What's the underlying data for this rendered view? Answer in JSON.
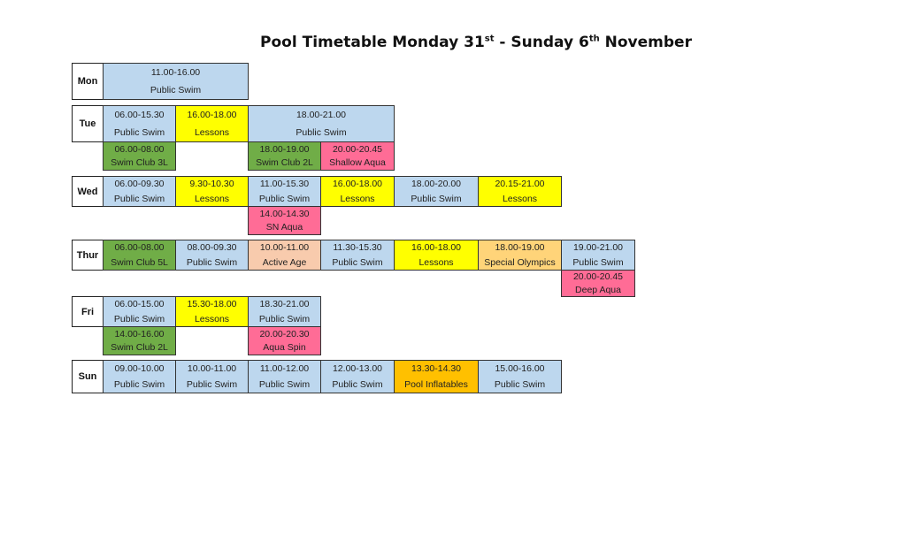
{
  "title": {
    "prefix": "Pool Timetable Monday 31",
    "sup1": "st",
    "middle": " - Sunday 6",
    "sup2": "th",
    "suffix": " November"
  },
  "colors": {
    "public_swim": "#bdd7ee",
    "lessons": "#ffff00",
    "swim_club": "#70ad47",
    "aqua": "#ff6c96",
    "active_age": "#f8cbad",
    "special_olympics": "#ffd479",
    "pool_inflatables": "#ffc000"
  },
  "days": {
    "mon": {
      "label": "Mon",
      "sessions": [
        {
          "time": "11.00-16.00",
          "activity": "Public Swim"
        }
      ]
    },
    "tue": {
      "label": "Tue",
      "sessions": [
        {
          "time": "06.00-15.30",
          "activity": "Public Swim"
        },
        {
          "time": "16.00-18.00",
          "activity": "Lessons"
        },
        {
          "time": "18.00-21.00",
          "activity": "Public Swim"
        },
        {
          "time": "06.00-08.00",
          "activity": "Swim Club 3L"
        },
        {
          "time": "18.00-19.00",
          "activity": "Swim Club 2L"
        },
        {
          "time": "20.00-20.45",
          "activity": "Shallow Aqua"
        }
      ]
    },
    "wed": {
      "label": "Wed",
      "sessions": [
        {
          "time": "06.00-09.30",
          "activity": "Public Swim"
        },
        {
          "time": "9.30-10.30",
          "activity": "Lessons"
        },
        {
          "time": "11.00-15.30",
          "activity": "Public Swim"
        },
        {
          "time": "16.00-18.00",
          "activity": "Lessons"
        },
        {
          "time": "18.00-20.00",
          "activity": "Public Swim"
        },
        {
          "time": "20.15-21.00",
          "activity": "Lessons"
        },
        {
          "time": "14.00-14.30",
          "activity": "SN Aqua"
        }
      ]
    },
    "thu": {
      "label": "Thur",
      "sessions": [
        {
          "time": "06.00-08.00",
          "activity": "Swim Club 5L"
        },
        {
          "time": "08.00-09.30",
          "activity": "Public Swim"
        },
        {
          "time": "10.00-11.00",
          "activity": "Active Age"
        },
        {
          "time": "11.30-15.30",
          "activity": "Public Swim"
        },
        {
          "time": "16.00-18.00",
          "activity": "Lessons"
        },
        {
          "time": "18.00-19.00",
          "activity": "Special Olympics"
        },
        {
          "time": "19.00-21.00",
          "activity": "Public Swim"
        },
        {
          "time": "20.00-20.45",
          "activity": "Deep Aqua"
        }
      ]
    },
    "fri": {
      "label": "Fri",
      "sessions": [
        {
          "time": "06.00-15.00",
          "activity": "Public Swim"
        },
        {
          "time": "15.30-18.00",
          "activity": "Lessons"
        },
        {
          "time": "18.30-21.00",
          "activity": "Public Swim"
        },
        {
          "time": "14.00-16.00",
          "activity": "Swim Club 2L"
        },
        {
          "time": "20.00-20.30",
          "activity": "Aqua Spin"
        }
      ]
    },
    "sun": {
      "label": "Sun",
      "sessions": [
        {
          "time": "09.00-10.00",
          "activity": "Public Swim"
        },
        {
          "time": "10.00-11.00",
          "activity": "Public Swim"
        },
        {
          "time": "11.00-12.00",
          "activity": "Public Swim"
        },
        {
          "time": "12.00-13.00",
          "activity": "Public Swim"
        },
        {
          "time": "13.30-14.30",
          "activity": "Pool Inflatables"
        },
        {
          "time": "15.00-16.00",
          "activity": "Public Swim"
        }
      ]
    }
  }
}
